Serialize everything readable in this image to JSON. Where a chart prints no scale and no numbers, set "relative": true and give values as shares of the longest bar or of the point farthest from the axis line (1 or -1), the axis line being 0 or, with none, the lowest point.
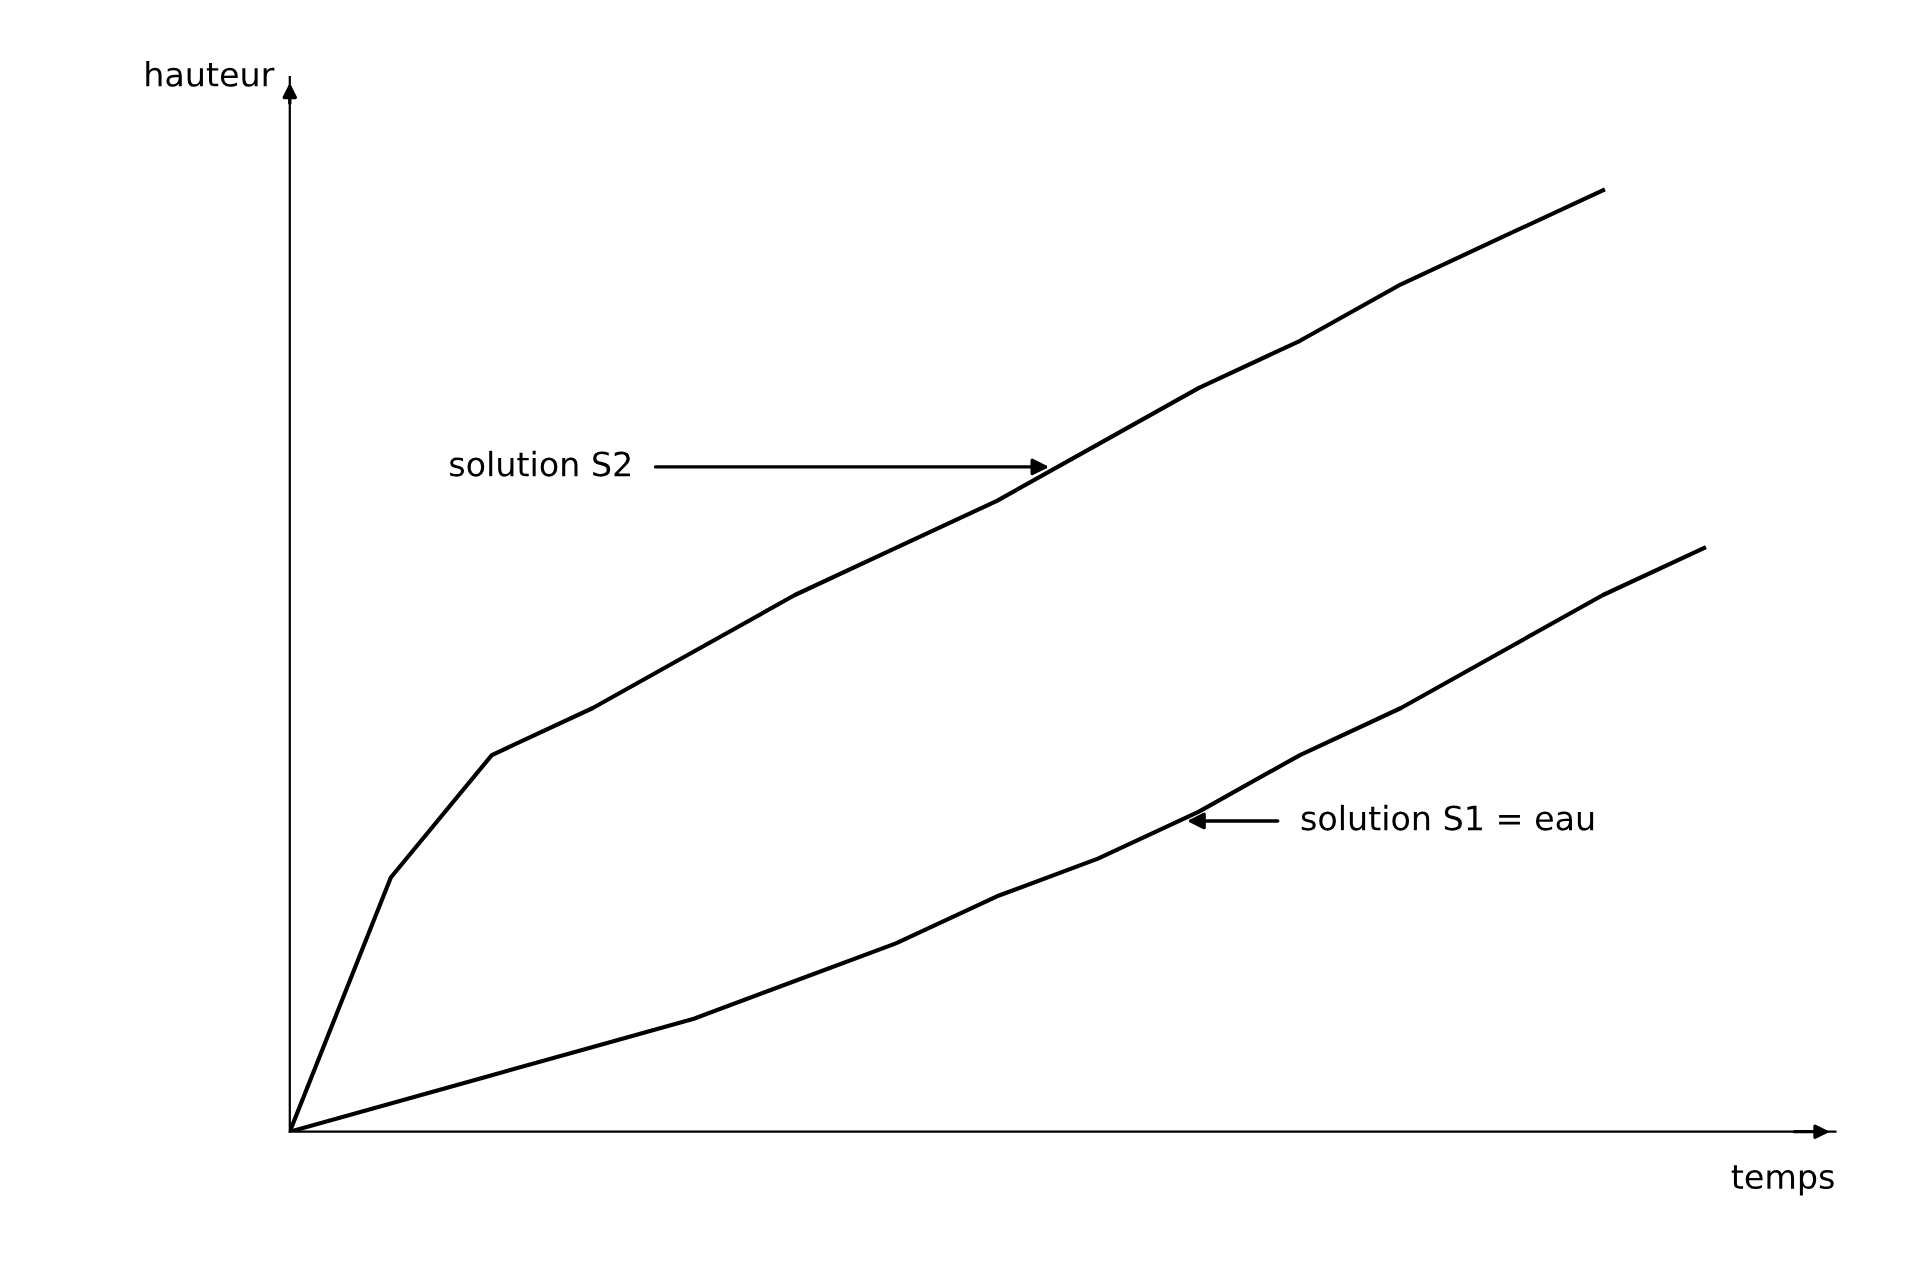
{
  "chart_data": {
    "type": "line",
    "relative": true,
    "xlabel": "temps",
    "ylabel": "hauteur",
    "categories": [
      null,
      null,
      null,
      null,
      null,
      null,
      null,
      null,
      null,
      null,
      null,
      null,
      null,
      null,
      null
    ],
    "series": [
      {
        "color": "#000000",
        "values": [
          0,
          0.27,
          0.4,
          0.45,
          0.51,
          0.57,
          0.62,
          0.67,
          0.73,
          0.79,
          0.84,
          0.9,
          0.95,
          1.0,
          null
        ]
      },
      {
        "color": "#000000",
        "values": [
          0,
          0.03,
          0.06,
          0.09,
          0.12,
          0.16,
          0.2,
          0.25,
          0.29,
          0.34,
          0.4,
          0.45,
          0.51,
          0.57,
          0.62
        ]
      }
    ],
    "annotations": [
      "solution S2",
      "solution S1 = eau"
    ],
    "marker": "none",
    "line_style": "solid",
    "legend": false
  }
}
